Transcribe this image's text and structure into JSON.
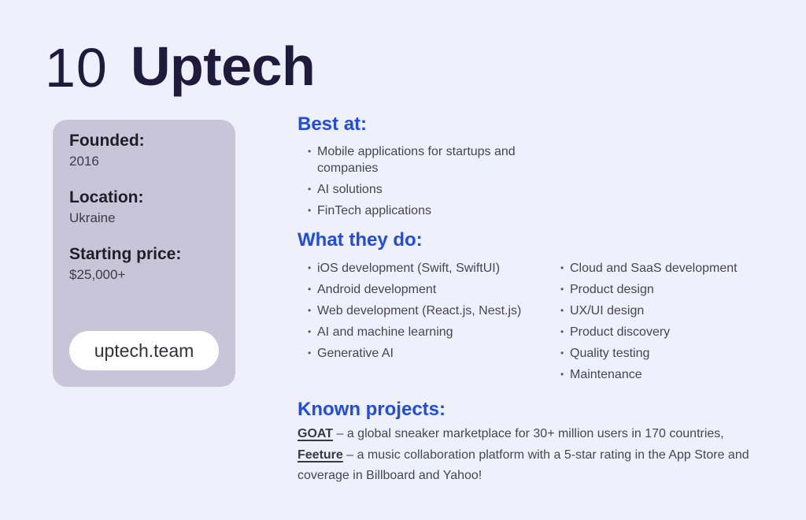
{
  "page": {
    "rank": "10",
    "title": "Uptech"
  },
  "card": {
    "founded_label": "Founded:",
    "founded_value": "2016",
    "location_label": "Location:",
    "location_value": "Ukraine",
    "price_label": "Starting price:",
    "price_value": "$25,000+",
    "website": "uptech.team"
  },
  "best_at": {
    "heading": "Best at:",
    "items": [
      "Mobile applications for startups and companies",
      "AI solutions",
      "FinTech applications"
    ]
  },
  "what_they_do": {
    "heading": "What they do:",
    "col1": [
      "iOS development (Swift, SwiftUI)",
      "Android development",
      "Web development (React.js, Nest.js)",
      "AI and machine learning",
      "Generative AI"
    ],
    "col2": [
      "Cloud and SaaS development",
      "Product design",
      "UX/UI design",
      "Product discovery",
      "Quality testing",
      "Maintenance"
    ]
  },
  "known_projects": {
    "heading": "Known projects:",
    "project1_name": "GOAT",
    "project1_desc": " – a global sneaker marketplace for 30+ million users in 170 countries, ",
    "project2_name": "Feeture",
    "project2_desc": " – a music collaboration platform with a 5-star rating in the App Store and coverage in Billboard and Yahoo!"
  },
  "icons": {
    "bullet": "•"
  },
  "colors": {
    "background": "#eef0fb",
    "card_background": "#c9c5d9",
    "heading_blue": "#1e4af0",
    "title_navy": "#201a3c",
    "body_text": "#47464f"
  }
}
